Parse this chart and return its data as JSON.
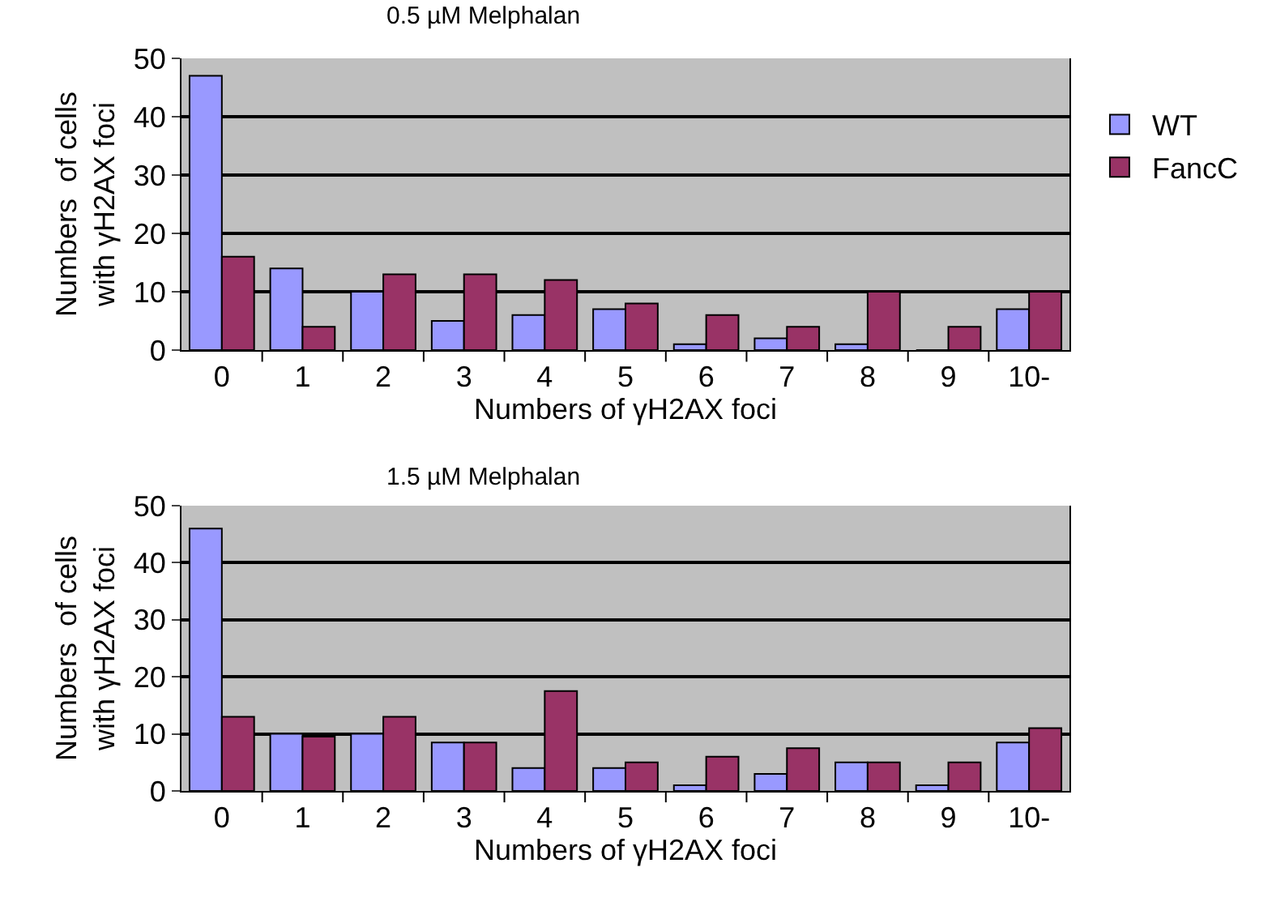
{
  "chart_data": [
    {
      "type": "bar",
      "title": "0.5 µM Melphalan",
      "xlabel": "Numbers of γH2AX foci",
      "ylabel": "Numbers  of cells\nwith γH2AX foci",
      "categories": [
        "0",
        "1",
        "2",
        "3",
        "4",
        "5",
        "6",
        "7",
        "8",
        "9",
        "10-"
      ],
      "series": [
        {
          "name": "WT",
          "color": "#9999ff",
          "values": [
            47,
            14,
            10,
            5,
            6,
            7,
            1,
            2,
            1,
            0,
            7
          ]
        },
        {
          "name": "FancC",
          "color": "#993366",
          "values": [
            16,
            4,
            13,
            13,
            12,
            8,
            6,
            4,
            10,
            4,
            10
          ]
        }
      ],
      "ylim": [
        0,
        50
      ],
      "yticks": [
        0,
        10,
        20,
        30,
        40,
        50
      ],
      "grid": "y",
      "legend": "right"
    },
    {
      "type": "bar",
      "title": "1.5 µM Melphalan",
      "xlabel": "Numbers of γH2AX foci",
      "ylabel": "Numbers  of cells\nwith γH2AX foci",
      "categories": [
        "0",
        "1",
        "2",
        "3",
        "4",
        "5",
        "6",
        "7",
        "8",
        "9",
        "10-"
      ],
      "series": [
        {
          "color": "#9999ff",
          "values": [
            46,
            10,
            10,
            8.5,
            4,
            4,
            1,
            3,
            5,
            1,
            8.5
          ]
        },
        {
          "color": "#993366",
          "values": [
            13,
            9.5,
            13,
            8.5,
            17.5,
            5,
            6,
            7.5,
            5,
            5,
            11
          ]
        }
      ],
      "ylim": [
        0,
        50
      ],
      "yticks": [
        0,
        10,
        20,
        30,
        40,
        50
      ],
      "grid": "y",
      "legend": false
    }
  ]
}
